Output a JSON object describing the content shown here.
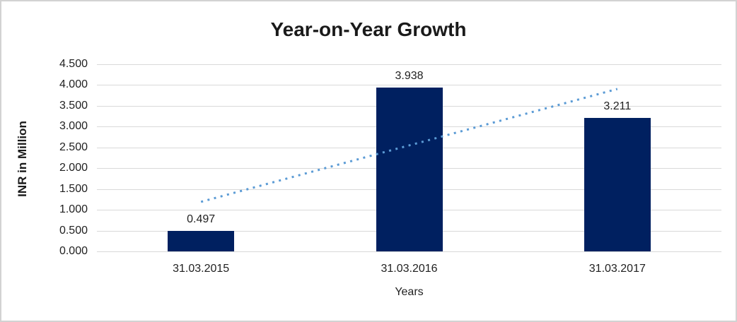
{
  "chart_data": {
    "type": "bar",
    "title": "Year-on-Year Growth",
    "xlabel": "Years",
    "ylabel": "INR in Million",
    "categories": [
      "31.03.2015",
      "31.03.2016",
      "31.03.2017"
    ],
    "series": [
      {
        "name": "INR in Million",
        "values": [
          0.497,
          3.938,
          3.211
        ]
      }
    ],
    "value_labels": [
      "0.497",
      "3.938",
      "3.211"
    ],
    "ylim": [
      0,
      4.5
    ],
    "ytick_step": 0.5,
    "ytick_labels": [
      "0.000",
      "0.500",
      "1.000",
      "1.500",
      "2.000",
      "2.500",
      "3.000",
      "3.500",
      "4.000",
      "4.500"
    ],
    "grid": true,
    "legend_position": "none",
    "bar_color": "#002060",
    "gridline_color": "#d9d9d9",
    "text_color": "#1f1f1f",
    "trendline": {
      "type": "linear",
      "style": "dotted",
      "color": "#5b9bd5",
      "start_value": 1.192,
      "end_value": 3.906
    }
  }
}
